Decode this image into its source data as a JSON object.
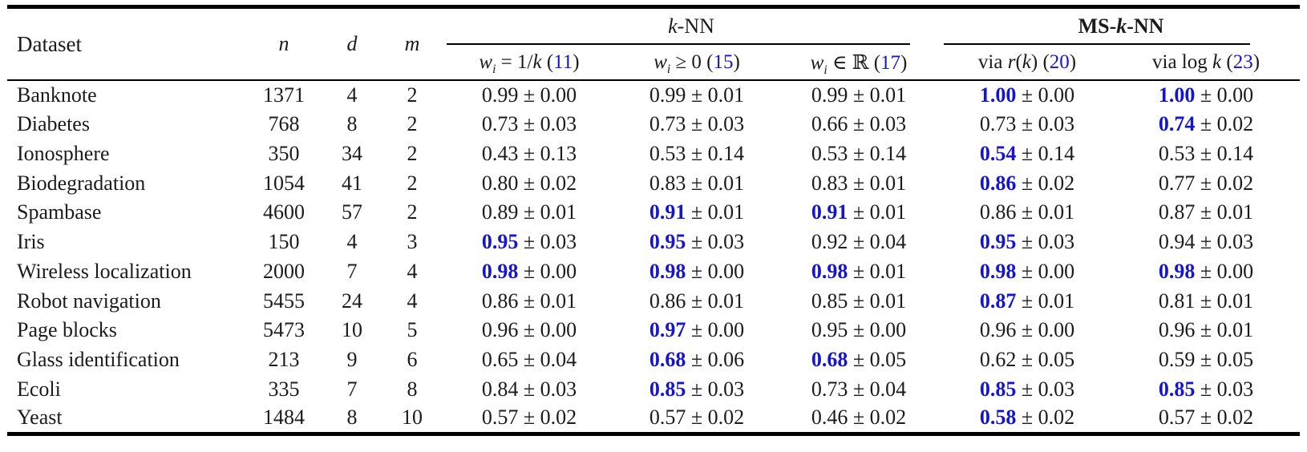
{
  "colors": {
    "link_blue": "#1515cd",
    "text": "#1b1b1b",
    "rule": "#000000"
  },
  "table": {
    "header": {
      "dataset": "Dataset",
      "n": "n",
      "d": "d",
      "m": "m",
      "groups": [
        {
          "name": "knn",
          "parts": [
            {
              "t": "k",
              "i": 1
            },
            {
              "t": "-NN"
            }
          ]
        },
        {
          "name": "msknn",
          "parts": [
            {
              "t": "MS-",
              "b": 1
            },
            {
              "t": "k",
              "b": 1,
              "i": 1
            },
            {
              "t": "-NN",
              "b": 1
            }
          ]
        }
      ],
      "subheaders": [
        {
          "parts": [
            {
              "t": "w",
              "i": 1
            },
            {
              "t": "i",
              "i": 1,
              "sub": 1
            },
            {
              "t": " = 1/"
            },
            {
              "t": "k",
              "i": 1
            },
            {
              "t": " ("
            },
            {
              "t": "11",
              "ref": 1
            },
            {
              "t": ")"
            }
          ]
        },
        {
          "parts": [
            {
              "t": "w",
              "i": 1
            },
            {
              "t": "i",
              "i": 1,
              "sub": 1
            },
            {
              "t": " ≥ 0 ("
            },
            {
              "t": "15",
              "ref": 1
            },
            {
              "t": ")"
            }
          ]
        },
        {
          "parts": [
            {
              "t": "w",
              "i": 1
            },
            {
              "t": "i",
              "i": 1,
              "sub": 1
            },
            {
              "t": " ∈ ℝ ("
            },
            {
              "t": "17",
              "ref": 1
            },
            {
              "t": ")"
            }
          ]
        },
        {
          "parts": [
            {
              "t": "via "
            },
            {
              "t": "r",
              "i": 1
            },
            {
              "t": "("
            },
            {
              "t": "k",
              "i": 1
            },
            {
              "t": ") ("
            },
            {
              "t": "20",
              "ref": 1
            },
            {
              "t": ")"
            }
          ]
        },
        {
          "parts": [
            {
              "t": "via log "
            },
            {
              "t": "k",
              "i": 1
            },
            {
              "t": " ("
            },
            {
              "t": "23",
              "ref": 1
            },
            {
              "t": ")"
            }
          ]
        }
      ]
    },
    "pm_sign": "±",
    "rows": [
      {
        "dataset": "Banknote",
        "n": "1371",
        "d": "4",
        "m": "2",
        "cells": [
          {
            "v": "0.99",
            "pm": "0.00",
            "best": false
          },
          {
            "v": "0.99",
            "pm": "0.01",
            "best": false
          },
          {
            "v": "0.99",
            "pm": "0.01",
            "best": false
          },
          {
            "v": "1.00",
            "pm": "0.00",
            "best": true
          },
          {
            "v": "1.00",
            "pm": "0.00",
            "best": true
          }
        ]
      },
      {
        "dataset": "Diabetes",
        "n": "768",
        "d": "8",
        "m": "2",
        "cells": [
          {
            "v": "0.73",
            "pm": "0.03",
            "best": false
          },
          {
            "v": "0.73",
            "pm": "0.03",
            "best": false
          },
          {
            "v": "0.66",
            "pm": "0.03",
            "best": false
          },
          {
            "v": "0.73",
            "pm": "0.03",
            "best": false
          },
          {
            "v": "0.74",
            "pm": "0.02",
            "best": true
          }
        ]
      },
      {
        "dataset": "Ionosphere",
        "n": "350",
        "d": "34",
        "m": "2",
        "cells": [
          {
            "v": "0.43",
            "pm": "0.13",
            "best": false
          },
          {
            "v": "0.53",
            "pm": "0.14",
            "best": false
          },
          {
            "v": "0.53",
            "pm": "0.14",
            "best": false
          },
          {
            "v": "0.54",
            "pm": "0.14",
            "best": true
          },
          {
            "v": "0.53",
            "pm": "0.14",
            "best": false
          }
        ]
      },
      {
        "dataset": "Biodegradation",
        "n": "1054",
        "d": "41",
        "m": "2",
        "cells": [
          {
            "v": "0.80",
            "pm": "0.02",
            "best": false
          },
          {
            "v": "0.83",
            "pm": "0.01",
            "best": false
          },
          {
            "v": "0.83",
            "pm": "0.01",
            "best": false
          },
          {
            "v": "0.86",
            "pm": "0.02",
            "best": true
          },
          {
            "v": "0.77",
            "pm": "0.02",
            "best": false
          }
        ]
      },
      {
        "dataset": "Spambase",
        "n": "4600",
        "d": "57",
        "m": "2",
        "cells": [
          {
            "v": "0.89",
            "pm": "0.01",
            "best": false
          },
          {
            "v": "0.91",
            "pm": "0.01",
            "best": true
          },
          {
            "v": "0.91",
            "pm": "0.01",
            "best": true
          },
          {
            "v": "0.86",
            "pm": "0.01",
            "best": false
          },
          {
            "v": "0.87",
            "pm": "0.01",
            "best": false
          }
        ]
      },
      {
        "dataset": "Iris",
        "n": "150",
        "d": "4",
        "m": "3",
        "cells": [
          {
            "v": "0.95",
            "pm": "0.03",
            "best": true
          },
          {
            "v": "0.95",
            "pm": "0.03",
            "best": true
          },
          {
            "v": "0.92",
            "pm": "0.04",
            "best": false
          },
          {
            "v": "0.95",
            "pm": "0.03",
            "best": true
          },
          {
            "v": "0.94",
            "pm": "0.03",
            "best": false
          }
        ]
      },
      {
        "dataset": "Wireless localization",
        "n": "2000",
        "d": "7",
        "m": "4",
        "cells": [
          {
            "v": "0.98",
            "pm": "0.00",
            "best": true
          },
          {
            "v": "0.98",
            "pm": "0.00",
            "best": true
          },
          {
            "v": "0.98",
            "pm": "0.01",
            "best": true
          },
          {
            "v": "0.98",
            "pm": "0.00",
            "best": true
          },
          {
            "v": "0.98",
            "pm": "0.00",
            "best": true
          }
        ]
      },
      {
        "dataset": "Robot navigation",
        "n": "5455",
        "d": "24",
        "m": "4",
        "cells": [
          {
            "v": "0.86",
            "pm": "0.01",
            "best": false
          },
          {
            "v": "0.86",
            "pm": "0.01",
            "best": false
          },
          {
            "v": "0.85",
            "pm": "0.01",
            "best": false
          },
          {
            "v": "0.87",
            "pm": "0.01",
            "best": true
          },
          {
            "v": "0.81",
            "pm": "0.01",
            "best": false
          }
        ]
      },
      {
        "dataset": "Page blocks",
        "n": "5473",
        "d": "10",
        "m": "5",
        "cells": [
          {
            "v": "0.96",
            "pm": "0.00",
            "best": false
          },
          {
            "v": "0.97",
            "pm": "0.00",
            "best": true
          },
          {
            "v": "0.95",
            "pm": "0.00",
            "best": false
          },
          {
            "v": "0.96",
            "pm": "0.00",
            "best": false
          },
          {
            "v": "0.96",
            "pm": "0.01",
            "best": false
          }
        ]
      },
      {
        "dataset": "Glass identification",
        "n": "213",
        "d": "9",
        "m": "6",
        "cells": [
          {
            "v": "0.65",
            "pm": "0.04",
            "best": false
          },
          {
            "v": "0.68",
            "pm": "0.06",
            "best": true
          },
          {
            "v": "0.68",
            "pm": "0.05",
            "best": true
          },
          {
            "v": "0.62",
            "pm": "0.05",
            "best": false
          },
          {
            "v": "0.59",
            "pm": "0.05",
            "best": false
          }
        ]
      },
      {
        "dataset": "Ecoli",
        "n": "335",
        "d": "7",
        "m": "8",
        "cells": [
          {
            "v": "0.84",
            "pm": "0.03",
            "best": false
          },
          {
            "v": "0.85",
            "pm": "0.03",
            "best": true
          },
          {
            "v": "0.73",
            "pm": "0.04",
            "best": false
          },
          {
            "v": "0.85",
            "pm": "0.03",
            "best": true
          },
          {
            "v": "0.85",
            "pm": "0.03",
            "best": true
          }
        ]
      },
      {
        "dataset": "Yeast",
        "n": "1484",
        "d": "8",
        "m": "10",
        "cells": [
          {
            "v": "0.57",
            "pm": "0.02",
            "best": false
          },
          {
            "v": "0.57",
            "pm": "0.02",
            "best": false
          },
          {
            "v": "0.46",
            "pm": "0.02",
            "best": false
          },
          {
            "v": "0.58",
            "pm": "0.02",
            "best": true
          },
          {
            "v": "0.57",
            "pm": "0.02",
            "best": false
          }
        ]
      }
    ]
  }
}
